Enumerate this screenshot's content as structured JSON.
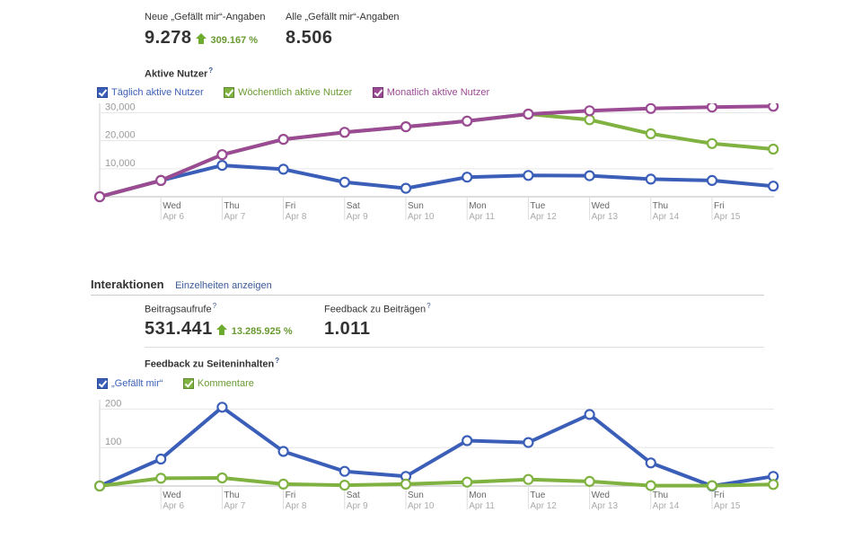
{
  "top_stats": {
    "new_likes_label": "Neue „Gefällt mir“-Angaben",
    "new_likes_value": "9.278",
    "new_likes_change": "309.167 %",
    "all_likes_label": "Alle „Gefällt mir“-Angaben",
    "all_likes_value": "8.506"
  },
  "active_users": {
    "title": "Aktive Nutzer",
    "help": "?",
    "legend": {
      "daily": "Täglich aktive Nutzer",
      "weekly": "Wöchentlich aktive Nutzer",
      "monthly": "Monatlich aktive Nutzer"
    }
  },
  "interactions": {
    "title": "Interaktionen",
    "details_link": "Einzelheiten anzeigen",
    "post_views_label": "Beitragsaufrufe",
    "post_views_value": "531.441",
    "post_views_change": "13.285.925 %",
    "feedback_label": "Feedback zu Beiträgen",
    "feedback_value": "1.011",
    "help": "?"
  },
  "content_feedback": {
    "title": "Feedback zu Seiteninhalten",
    "help": "?",
    "legend": {
      "likes": "„Gefällt mir“",
      "comments": "Kommentare"
    }
  },
  "colors": {
    "blue": "#3b5fb8",
    "green": "#7fb241",
    "purple": "#9b4a94",
    "grid": "#e5e5e5",
    "axis_label": "#999999"
  },
  "chart_data": [
    {
      "type": "line",
      "title": "Aktive Nutzer",
      "categories": [
        "",
        "Wed Apr 6",
        "Thu Apr 7",
        "Fri Apr 8",
        "Sat Apr 9",
        "Sun Apr 10",
        "Mon Apr 11",
        "Tue Apr 12",
        "Wed Apr 13",
        "Thu Apr 14",
        "Fri Apr 15",
        ""
      ],
      "x_day_labels": [
        "Wed",
        "Thu",
        "Fri",
        "Sat",
        "Sun",
        "Mon",
        "Tue",
        "Wed",
        "Thu",
        "Fri"
      ],
      "x_date_labels": [
        "Apr 6",
        "Apr 7",
        "Apr 8",
        "Apr 9",
        "Apr 10",
        "Apr 11",
        "Apr 12",
        "Apr 13",
        "Apr 14",
        "Apr 15"
      ],
      "y_ticks": [
        "10,000",
        "20,000",
        "30,000"
      ],
      "ylim": [
        0,
        34000
      ],
      "series": [
        {
          "name": "Täglich aktive Nutzer",
          "color": "#3b5fb8",
          "values": [
            0,
            5800,
            11200,
            9800,
            5200,
            3000,
            7000,
            7600,
            7500,
            6300,
            5800,
            3800
          ]
        },
        {
          "name": "Wöchentlich aktive Nutzer",
          "color": "#7fb241",
          "values": [
            0,
            5800,
            15000,
            20500,
            23000,
            25000,
            27000,
            29500,
            27500,
            22500,
            19000,
            17000
          ]
        },
        {
          "name": "Monatlich aktive Nutzer",
          "color": "#9b4a94",
          "values": [
            0,
            5800,
            15000,
            20500,
            23000,
            25000,
            27000,
            29500,
            30700,
            31500,
            32000,
            32300
          ]
        }
      ]
    },
    {
      "type": "line",
      "title": "Feedback zu Seiteninhalten",
      "categories": [
        "",
        "Wed Apr 6",
        "Thu Apr 7",
        "Fri Apr 8",
        "Sat Apr 9",
        "Sun Apr 10",
        "Mon Apr 11",
        "Tue Apr 12",
        "Wed Apr 13",
        "Thu Apr 14",
        "Fri Apr 15",
        ""
      ],
      "x_day_labels": [
        "Wed",
        "Thu",
        "Fri",
        "Sat",
        "Sun",
        "Mon",
        "Tue",
        "Wed",
        "Thu",
        "Fri"
      ],
      "x_date_labels": [
        "Apr 6",
        "Apr 7",
        "Apr 8",
        "Apr 9",
        "Apr 10",
        "Apr 11",
        "Apr 12",
        "Apr 13",
        "Apr 14",
        "Apr 15"
      ],
      "y_ticks": [
        "100",
        "200"
      ],
      "ylim": [
        0,
        215
      ],
      "series": [
        {
          "name": "„Gefällt mir“",
          "color": "#3b5fb8",
          "values": [
            0,
            70,
            205,
            90,
            38,
            25,
            118,
            113,
            186,
            60,
            0,
            25
          ]
        },
        {
          "name": "Kommentare",
          "color": "#7fb241",
          "values": [
            0,
            20,
            21,
            5,
            2,
            5,
            10,
            17,
            12,
            1,
            1,
            4
          ]
        }
      ]
    }
  ]
}
